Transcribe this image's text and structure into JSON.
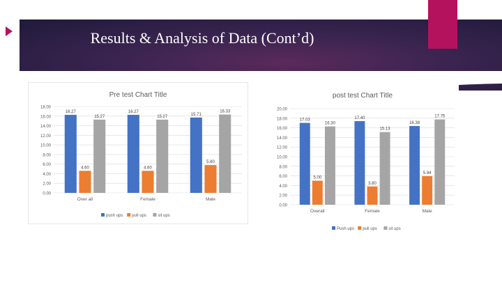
{
  "slide": {
    "title": "Results & Analysis of Data (Cont’d)",
    "colors": {
      "banner": "#2b1f45",
      "accent": "#b5125d"
    }
  },
  "chart_data": [
    {
      "type": "bar",
      "title": "Pre test Chart Title",
      "categories": [
        "Over all",
        "Female",
        "Male"
      ],
      "series": [
        {
          "name": "push ups",
          "color": "#4472c4",
          "values": [
            16.27,
            16.27,
            15.71
          ],
          "labels": [
            "16.27",
            "16.27",
            "15.71"
          ]
        },
        {
          "name": "pull ups",
          "color": "#ed7d31",
          "values": [
            4.6,
            4.6,
            5.8
          ],
          "labels": [
            "4.60",
            "4.60",
            "5.80"
          ]
        },
        {
          "name": "sit ups",
          "color": "#a5a5a5",
          "values": [
            15.27,
            15.27,
            16.33
          ],
          "labels": [
            "15.27",
            "15.27",
            "16.33"
          ]
        }
      ],
      "yticks": [
        "0.00",
        "2.00",
        "4.00",
        "6.00",
        "8.00",
        "10.00",
        "12.00",
        "14.00",
        "16.00",
        "18.00"
      ],
      "ylim": [
        0,
        18
      ],
      "legend": "bottom",
      "grid": true
    },
    {
      "type": "bar",
      "title": "post test Chart Title",
      "categories": [
        "Overall",
        "Female",
        "Male"
      ],
      "series": [
        {
          "name": "Push ups",
          "color": "#4472c4",
          "values": [
            17.03,
            17.4,
            16.38
          ],
          "labels": [
            "17.03",
            "17.40",
            "16.38"
          ]
        },
        {
          "name": "pull ups",
          "color": "#ed7d31",
          "values": [
            5.0,
            3.8,
            5.94
          ],
          "labels": [
            "5.00",
            "3.80",
            "5.94"
          ]
        },
        {
          "name": "sit ups",
          "color": "#a5a5a5",
          "values": [
            16.3,
            15.13,
            17.75
          ],
          "labels": [
            "16.30",
            "15.13",
            "17.75"
          ]
        }
      ],
      "yticks": [
        "0.00",
        "2.00",
        "4.00",
        "6.00",
        "8.00",
        "10.00",
        "12.00",
        "14.00",
        "16.00",
        "18.00",
        "20.00"
      ],
      "ylim": [
        0,
        20
      ],
      "legend": "bottom",
      "grid": true
    }
  ]
}
